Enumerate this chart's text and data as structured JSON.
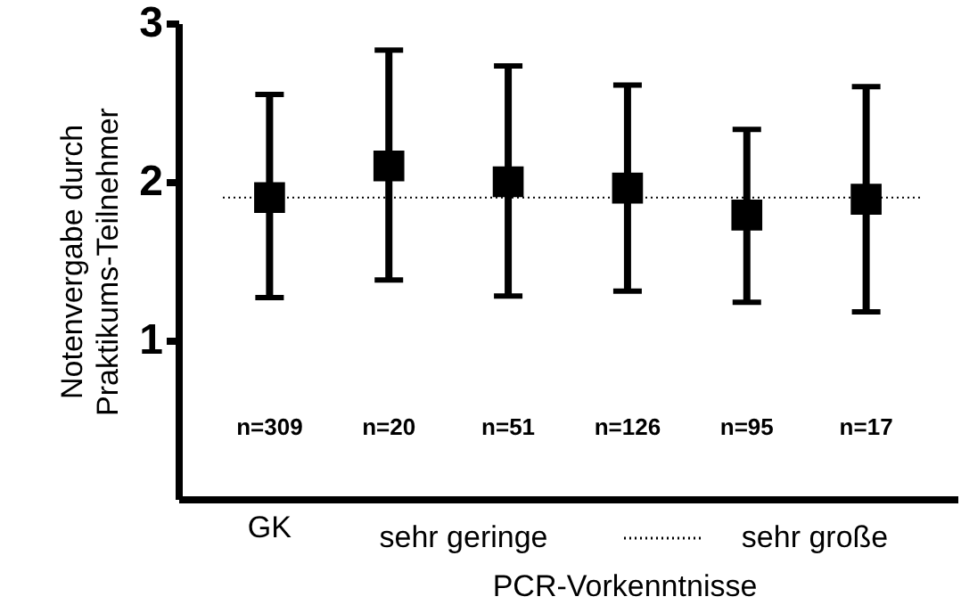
{
  "chart_data": {
    "type": "scatter",
    "ylabel": "Notenvergabe durch Praktikums-Teilnehmer",
    "xlabel": "PCR-Vorkenntnisse",
    "categories": [
      "GK",
      null,
      null,
      null,
      null,
      null
    ],
    "series": [
      {
        "color": "#000000",
        "values": [
          1.9,
          2.1,
          2.0,
          1.96,
          1.79,
          1.89
        ],
        "errors": [
          [
            1.27,
            2.55
          ],
          [
            1.38,
            2.83
          ],
          [
            1.28,
            2.73
          ],
          [
            1.31,
            2.61
          ],
          [
            1.24,
            2.33
          ],
          [
            1.18,
            2.6
          ]
        ]
      }
    ],
    "ylim": [
      0,
      3
    ],
    "yticks": [
      1,
      2,
      3
    ],
    "ref_lines": [
      {
        "axis": "y",
        "value": 1.9,
        "color": "#000000",
        "line_style": "dotted"
      }
    ],
    "annotations": [
      "n=309",
      "n=20",
      "n=51",
      "n=126",
      "n=95",
      "n=17",
      "sehr geringe",
      "sehr große"
    ],
    "marker": "square",
    "grid": false
  }
}
